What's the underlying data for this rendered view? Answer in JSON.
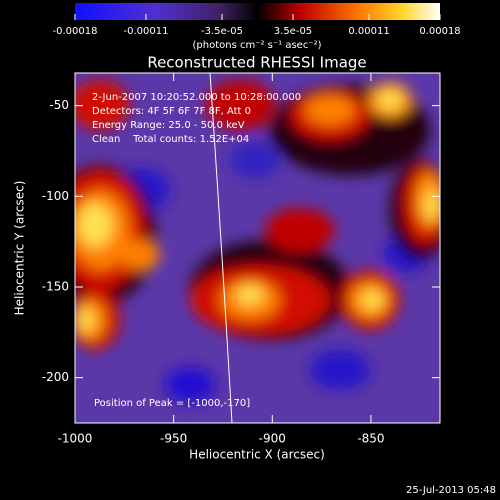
{
  "chart_data": {
    "type": "image",
    "title": "Reconstructed RHESSI Image",
    "xlabel": "Heliocentric X (arcsec)",
    "ylabel": "Heliocentric Y (arcsec)",
    "xlim": [
      -1000,
      -815
    ],
    "xticks": [
      -1000,
      -950,
      -900,
      -850
    ],
    "ylim": [
      -225,
      -32
    ],
    "yticks": [
      -50,
      -100,
      -150,
      -200
    ],
    "colorbar": {
      "label": "(photons cm⁻² s⁻¹ asec⁻²)",
      "lim": [
        -0.00018,
        0.00018
      ],
      "ticks": [
        -0.00018,
        -0.00011,
        {
          "value": -3.5e-05,
          "label": "-3.5e-05"
        },
        {
          "value": 3.5e-05,
          "label": "3.5e-05"
        },
        0.00011,
        0.00018
      ]
    },
    "annotations": [
      "2-Jun-2007 10:20:52.000 to 10:28:00.000",
      "Detectors: 4F 5F 6F 7F 8F, Att 0",
      "Energy Range: 25.0 - 50.0 keV",
      "Clean    Total counts: 1.52E+04"
    ],
    "peak_label": "Position of Peak = [-1000,-170]",
    "timestamp": "25-Jul-2013 05:48"
  }
}
